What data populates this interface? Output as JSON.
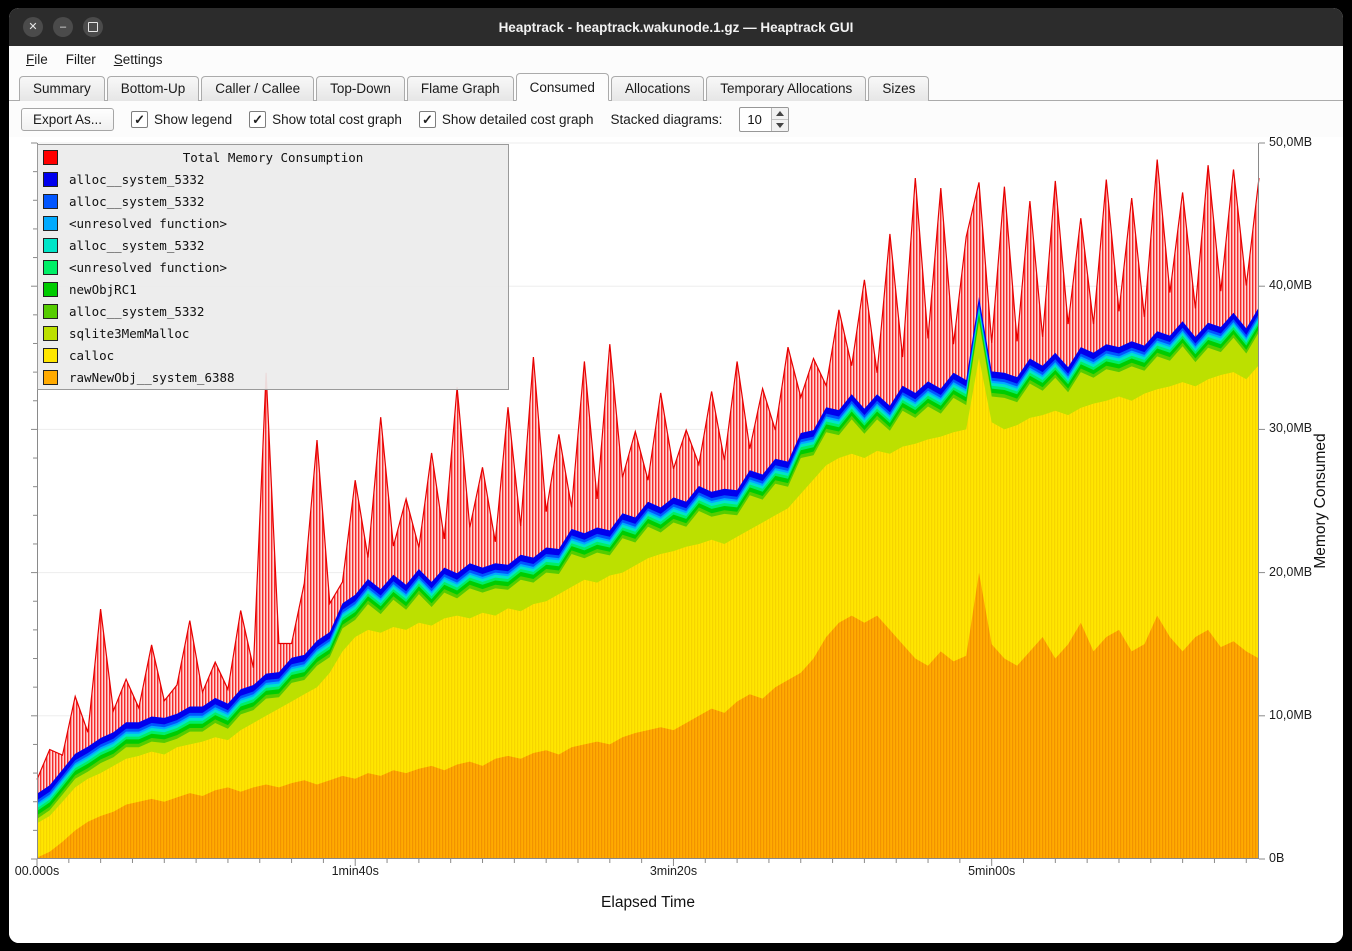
{
  "window": {
    "title": "Heaptrack - heaptrack.wakunode.1.gz — Heaptrack GUI"
  },
  "menu": {
    "items": [
      "File",
      "Filter",
      "Settings"
    ]
  },
  "tabs": {
    "items": [
      "Summary",
      "Bottom-Up",
      "Caller / Callee",
      "Top-Down",
      "Flame Graph",
      "Consumed",
      "Allocations",
      "Temporary Allocations",
      "Sizes"
    ],
    "active": "Consumed"
  },
  "toolbar": {
    "export_label": "Export As...",
    "checkboxes": [
      {
        "label": "Show legend",
        "checked": true
      },
      {
        "label": "Show total cost graph",
        "checked": true
      },
      {
        "label": "Show detailed cost graph",
        "checked": true
      }
    ],
    "stacked_label": "Stacked diagrams:",
    "stacked_value": "10"
  },
  "legend": {
    "title": "Total Memory Consumption",
    "title_color": "#ff0000",
    "items": [
      {
        "label": "alloc__system_5332",
        "color": "#0000ee"
      },
      {
        "label": "alloc__system_5332",
        "color": "#0055ff"
      },
      {
        "label": "<unresolved function>",
        "color": "#00aaff"
      },
      {
        "label": "alloc__system_5332",
        "color": "#00e5c8"
      },
      {
        "label": "<unresolved function>",
        "color": "#00ee66"
      },
      {
        "label": "newObjRC1",
        "color": "#00cc00"
      },
      {
        "label": "alloc__system_5332",
        "color": "#55cc00"
      },
      {
        "label": "sqlite3MemMalloc",
        "color": "#bce000"
      },
      {
        "label": "calloc",
        "color": "#ffe600"
      },
      {
        "label": "rawNewObj__system_6388",
        "color": "#ffaa00"
      }
    ]
  },
  "axes": {
    "y_ticks": [
      "50,0MB",
      "40,0MB",
      "30,0MB",
      "20,0MB",
      "10,0MB",
      "0B"
    ],
    "y_tick_values": [
      50,
      40,
      30,
      20,
      10,
      0
    ],
    "x_ticks": [
      "00.000s",
      "1min40s",
      "3min20s",
      "5min00s"
    ],
    "x_tick_values": [
      0,
      100,
      200,
      300
    ],
    "x_label": "Elapsed Time",
    "y_label": "Memory Consumed"
  },
  "chart_data": {
    "type": "area",
    "stacked": true,
    "title": "Total Memory Consumption",
    "xlabel": "Elapsed Time",
    "ylabel": "Memory Consumed",
    "x_range_seconds": [
      0,
      384
    ],
    "y_range_mb": [
      0,
      50
    ],
    "x_seconds": [
      0,
      4,
      8,
      12,
      16,
      20,
      24,
      28,
      32,
      36,
      40,
      44,
      48,
      52,
      56,
      60,
      64,
      68,
      72,
      76,
      80,
      84,
      88,
      92,
      96,
      100,
      104,
      108,
      112,
      116,
      120,
      124,
      128,
      132,
      136,
      140,
      144,
      148,
      152,
      156,
      160,
      164,
      168,
      172,
      176,
      180,
      184,
      188,
      192,
      196,
      200,
      204,
      208,
      212,
      216,
      220,
      224,
      228,
      232,
      236,
      240,
      244,
      248,
      252,
      256,
      260,
      264,
      268,
      272,
      276,
      280,
      284,
      288,
      292,
      296,
      300,
      304,
      308,
      312,
      316,
      320,
      324,
      328,
      332,
      336,
      340,
      344,
      348,
      352,
      356,
      360,
      364,
      368,
      372,
      376,
      380,
      384
    ],
    "series": [
      {
        "name": "rawNewObj__system_6388",
        "color": "#ffaa00",
        "pattern": "hatchOrange",
        "values": [
          0.1,
          0.5,
          1.2,
          2.0,
          2.6,
          3.0,
          3.3,
          3.8,
          4.0,
          4.2,
          4.0,
          4.3,
          4.6,
          4.4,
          4.8,
          5.0,
          4.7,
          5.0,
          5.2,
          5.0,
          5.3,
          5.5,
          5.2,
          5.5,
          5.8,
          5.6,
          6.0,
          5.8,
          6.2,
          6.0,
          6.3,
          6.5,
          6.2,
          6.6,
          6.8,
          6.5,
          7.0,
          7.2,
          7.0,
          7.4,
          7.6,
          7.3,
          7.8,
          8.0,
          8.2,
          8.0,
          8.5,
          8.8,
          9.0,
          9.2,
          9.0,
          9.5,
          10.0,
          10.5,
          10.2,
          11.0,
          11.5,
          11.2,
          12.0,
          12.5,
          13.0,
          14.0,
          15.5,
          16.5,
          17.0,
          16.5,
          17.0,
          16.0,
          15.0,
          14.0,
          13.5,
          14.5,
          13.8,
          14.2,
          20.0,
          15.0,
          14.0,
          13.5,
          14.5,
          15.5,
          14.0,
          15.0,
          16.5,
          14.5,
          15.5,
          16.0,
          14.5,
          15.0,
          17.0,
          15.5,
          14.5,
          15.5,
          16.0,
          14.8,
          15.2,
          14.5,
          14.0
        ]
      },
      {
        "name": "calloc",
        "color": "#ffe600",
        "pattern": "hatchYellow",
        "values": [
          2.4,
          2.5,
          2.8,
          3.0,
          3.0,
          3.0,
          3.2,
          3.2,
          3.2,
          3.3,
          3.3,
          3.5,
          3.4,
          3.8,
          3.7,
          3.3,
          4.3,
          4.5,
          4.8,
          5.5,
          5.7,
          6.0,
          6.8,
          7.5,
          8.7,
          9.9,
          10.0,
          10.0,
          10.0,
          10.0,
          10.2,
          9.8,
          10.6,
          10.4,
          10.0,
          10.7,
          10.0,
          10.3,
          10.3,
          10.4,
          10.4,
          11.2,
          11.2,
          11.5,
          11.1,
          11.8,
          11.5,
          11.7,
          12.0,
          12.1,
          12.5,
          12.3,
          12.0,
          11.8,
          11.8,
          11.5,
          11.5,
          12.3,
          12.0,
          12.0,
          12.5,
          12.5,
          12.0,
          11.5,
          11.3,
          11.5,
          11.5,
          12.3,
          13.8,
          15.0,
          15.8,
          15.0,
          16.0,
          15.8,
          15.0,
          15.5,
          16.0,
          16.8,
          16.3,
          15.5,
          17.3,
          16.0,
          15.0,
          17.3,
          16.5,
          16.3,
          17.5,
          17.5,
          15.8,
          17.5,
          18.8,
          17.5,
          17.5,
          19.0,
          18.8,
          19.0,
          20.5
        ]
      },
      {
        "name": "sqlite3MemMalloc",
        "color": "#bce000",
        "values": [
          0.3,
          0.4,
          0.5,
          0.6,
          0.5,
          0.7,
          0.6,
          0.8,
          0.6,
          0.7,
          0.8,
          0.6,
          0.9,
          0.7,
          1.0,
          0.8,
          1.1,
          0.9,
          1.2,
          0.8,
          1.3,
          1.0,
          1.5,
          1.1,
          1.6,
          1.2,
          1.8,
          1.3,
          1.9,
          1.4,
          2.0,
          1.3,
          1.8,
          1.2,
          2.1,
          1.4,
          1.9,
          1.3,
          2.2,
          1.5,
          2.0,
          1.4,
          2.3,
          1.5,
          2.1,
          1.4,
          2.4,
          1.6,
          2.2,
          1.5,
          2.0,
          1.4,
          2.3,
          1.6,
          2.1,
          1.5,
          2.4,
          1.6,
          2.2,
          1.5,
          2.5,
          1.7,
          2.3,
          1.6,
          2.4,
          1.7,
          2.2,
          1.6,
          2.5,
          1.8,
          2.3,
          1.6,
          2.4,
          1.7,
          2.5,
          1.8,
          2.2,
          1.6,
          2.4,
          1.7,
          2.3,
          1.6,
          2.5,
          1.8,
          2.2,
          1.7,
          2.4,
          1.6,
          2.3,
          1.8,
          2.5,
          1.7,
          2.2,
          1.6,
          2.4,
          1.8,
          2.3
        ]
      },
      {
        "name": "alloc__system_5332",
        "color": "#55cc00",
        "const": 0.25
      },
      {
        "name": "newObjRC1",
        "color": "#00cc00",
        "const": 0.3
      },
      {
        "name": "<unresolved function>",
        "color": "#00ee66",
        "const": 0.2
      },
      {
        "name": "alloc__system_5332",
        "color": "#00e5c8",
        "const": 0.2
      },
      {
        "name": "<unresolved function>",
        "color": "#00aaff",
        "const": 0.15
      },
      {
        "name": "alloc__system_5332",
        "color": "#0055ff",
        "const": 0.2
      },
      {
        "name": "alloc__system_5332",
        "color": "#0000ee",
        "const": 0.45
      }
    ],
    "total": {
      "name": "Total Memory Consumption",
      "color": "#ff0000",
      "extra_above_stack": [
        1.0,
        2.5,
        1.0,
        4.0,
        1.0,
        9.0,
        1.5,
        3.0,
        1.0,
        5.0,
        1.2,
        2.0,
        6.0,
        1.0,
        2.5,
        1.0,
        5.5,
        1.2,
        21.0,
        2.0,
        1.0,
        5.0,
        14.0,
        2.0,
        1.5,
        8.0,
        1.5,
        12.0,
        2.0,
        6.0,
        1.5,
        9.0,
        2.0,
        13.0,
        2.5,
        7.0,
        1.5,
        11.0,
        2.0,
        14.0,
        2.5,
        8.0,
        1.5,
        12.0,
        2.0,
        13.0,
        2.5,
        6.0,
        1.5,
        8.0,
        2.0,
        5.0,
        1.5,
        7.0,
        2.0,
        9.0,
        1.5,
        6.0,
        2.0,
        8.0,
        2.5,
        5.0,
        1.5,
        7.0,
        2.0,
        9.0,
        1.5,
        12.0,
        2.0,
        15.0,
        3.0,
        14.0,
        2.0,
        10.0,
        8.0,
        2.0,
        13.0,
        2.5,
        11.0,
        2.0,
        12.0,
        3.0,
        9.0,
        2.0,
        11.5,
        2.5,
        10.0,
        2.0,
        12.0,
        3.0,
        9.0,
        2.0,
        11.0,
        2.5,
        10.0,
        3.0,
        9.0
      ]
    }
  }
}
